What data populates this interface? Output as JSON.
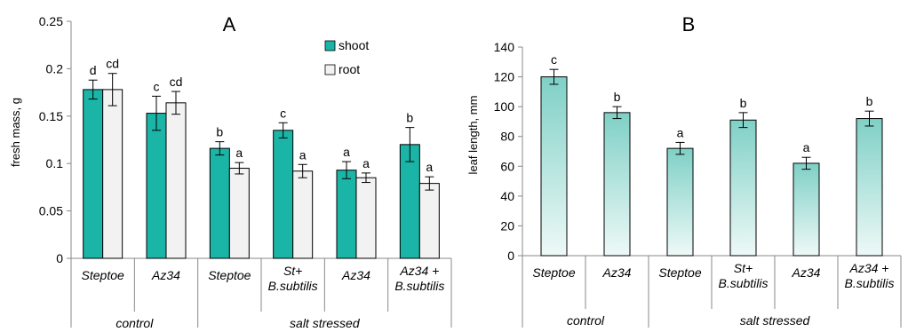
{
  "chart_data": [
    {
      "type": "bar",
      "panel_label": "A",
      "ylabel": "fresh mass, g",
      "ylim": [
        0,
        0.25
      ],
      "yticks": [
        "0",
        "0.05",
        "0.1",
        "0.15",
        "0.2",
        "0.25"
      ],
      "grid": false,
      "legend_position": "top-right",
      "categories": [
        {
          "lines": [
            "Steptoe"
          ]
        },
        {
          "lines": [
            "Az34"
          ]
        },
        {
          "lines": [
            "Steptoe"
          ]
        },
        {
          "lines": [
            "St+",
            "B.subtilis"
          ]
        },
        {
          "lines": [
            "Az34"
          ]
        },
        {
          "lines": [
            "Az34 +",
            "B.subtilis"
          ]
        }
      ],
      "groups": [
        {
          "label": "control",
          "categories": 2
        },
        {
          "label": "salt stressed",
          "categories": 4
        }
      ],
      "series": [
        {
          "name": "shoot",
          "color": "#1ab5a6",
          "values": [
            0.178,
            0.153,
            0.116,
            0.135,
            0.093,
            0.12
          ],
          "errors": [
            0.01,
            0.018,
            0.007,
            0.008,
            0.009,
            0.018
          ],
          "labels": [
            "d",
            "c",
            "b",
            "c",
            "a",
            "b"
          ]
        },
        {
          "name": "root",
          "color": "#f2f2f2",
          "values": [
            0.178,
            0.164,
            0.095,
            0.092,
            0.085,
            0.079
          ],
          "errors": [
            0.017,
            0.012,
            0.006,
            0.007,
            0.005,
            0.007
          ],
          "labels": [
            "cd",
            "cd",
            "a",
            "a",
            "a",
            "a"
          ]
        }
      ]
    },
    {
      "type": "bar",
      "panel_label": "B",
      "ylabel": "leaf length, mm",
      "ylim": [
        0,
        140
      ],
      "yticks": [
        "0",
        "20",
        "40",
        "60",
        "80",
        "100",
        "120",
        "140"
      ],
      "grid": false,
      "categories": [
        {
          "lines": [
            "Steptoe"
          ]
        },
        {
          "lines": [
            "Az34"
          ]
        },
        {
          "lines": [
            "Steptoe"
          ]
        },
        {
          "lines": [
            "St+",
            "B.subtilis"
          ]
        },
        {
          "lines": [
            "Az34"
          ]
        },
        {
          "lines": [
            "Az34 +",
            "B.subtilis"
          ]
        }
      ],
      "groups": [
        {
          "label": "control",
          "categories": 2
        },
        {
          "label": "salt stressed",
          "categories": 4
        }
      ],
      "series": [
        {
          "color_top": "#7fd0c6",
          "color_bottom": "#eef9f7",
          "values": [
            120,
            96,
            72,
            91,
            62,
            92
          ],
          "errors": [
            5,
            4,
            4,
            5,
            4,
            5
          ],
          "labels": [
            "c",
            "b",
            "a",
            "b",
            "a",
            "b"
          ]
        }
      ]
    }
  ]
}
